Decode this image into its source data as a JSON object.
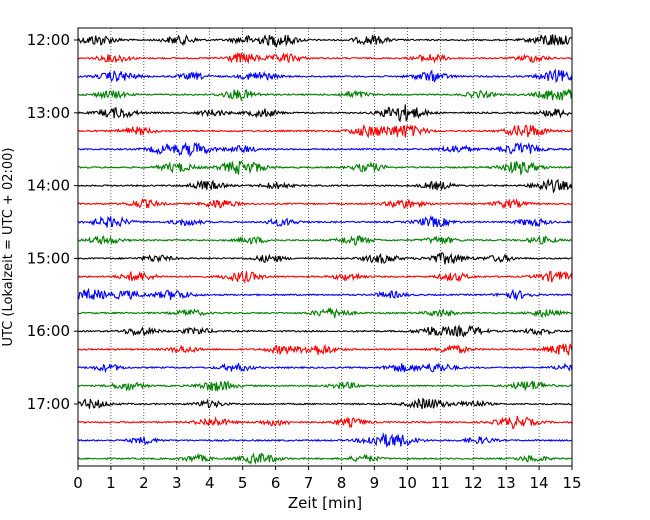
{
  "chart_data": {
    "type": "line",
    "title": "",
    "xlabel": "Zeit  [min]",
    "ylabel": "UTC (Lokalzeit = UTC + 02:00)",
    "xlim": [
      0,
      15
    ],
    "x_ticks": [
      "0",
      "1",
      "2",
      "3",
      "4",
      "5",
      "6",
      "7",
      "8",
      "9",
      "10",
      "11",
      "12",
      "13",
      "14",
      "15"
    ],
    "y_ticks": [
      "12:00",
      "13:00",
      "14:00",
      "15:00",
      "16:00",
      "17:00"
    ],
    "grid": {
      "vertical": true,
      "style": "dotted"
    },
    "trace_colors": [
      "#000000",
      "#ff0000",
      "#0000ff",
      "#008000"
    ],
    "traces": [
      {
        "start": "12:00",
        "bursts": [
          [
            0.6,
            1.6
          ],
          [
            3.1,
            1.3
          ],
          [
            5.1,
            1.1
          ],
          [
            6.1,
            1.8
          ],
          [
            8.9,
            1.4
          ],
          [
            14.4,
            2.0
          ]
        ]
      },
      {
        "start": "12:15",
        "bursts": [
          [
            1.1,
            1.2
          ],
          [
            5.0,
            1.5
          ],
          [
            6.3,
            1.3
          ],
          [
            10.7,
            1.2
          ],
          [
            13.8,
            1.1
          ]
        ]
      },
      {
        "start": "12:30",
        "bursts": [
          [
            1.2,
            1.6
          ],
          [
            3.5,
            1.0
          ],
          [
            5.5,
            1.4
          ],
          [
            10.7,
            1.5
          ],
          [
            14.6,
            1.8
          ]
        ]
      },
      {
        "start": "12:45",
        "bursts": [
          [
            1.0,
            1.2
          ],
          [
            4.9,
            1.5
          ],
          [
            8.4,
            1.0
          ],
          [
            12.2,
            1.0
          ],
          [
            14.6,
            2.0
          ]
        ]
      },
      {
        "start": "13:00",
        "bursts": [
          [
            1.2,
            1.6
          ],
          [
            4.1,
            1.0
          ],
          [
            5.6,
            1.2
          ],
          [
            9.6,
            1.2
          ],
          [
            10.0,
            1.8
          ],
          [
            14.5,
            1.2
          ]
        ]
      },
      {
        "start": "13:15",
        "bursts": [
          [
            1.8,
            1.2
          ],
          [
            8.8,
            1.6
          ],
          [
            9.9,
            2.0
          ],
          [
            13.4,
            1.2
          ],
          [
            13.8,
            1.3
          ]
        ]
      },
      {
        "start": "13:30",
        "bursts": [
          [
            2.6,
            1.3
          ],
          [
            3.5,
            1.8
          ],
          [
            5.0,
            1.0
          ],
          [
            11.5,
            1.2
          ],
          [
            13.4,
            1.8
          ]
        ]
      },
      {
        "start": "13:45",
        "bursts": [
          [
            3.0,
            1.4
          ],
          [
            4.7,
            1.2
          ],
          [
            5.2,
            1.5
          ],
          [
            8.8,
            1.3
          ],
          [
            13.4,
            1.9
          ]
        ]
      },
      {
        "start": "14:00",
        "bursts": [
          [
            3.9,
            1.4
          ],
          [
            6.0,
            1.0
          ],
          [
            10.9,
            1.2
          ],
          [
            14.4,
            1.8
          ]
        ]
      },
      {
        "start": "14:15",
        "bursts": [
          [
            2.0,
            1.2
          ],
          [
            4.3,
            1.3
          ],
          [
            9.9,
            1.4
          ],
          [
            13.1,
            1.2
          ]
        ]
      },
      {
        "start": "14:30",
        "bursts": [
          [
            1.0,
            1.6
          ],
          [
            3.3,
            1.0
          ],
          [
            6.2,
            1.1
          ],
          [
            10.8,
            1.5
          ],
          [
            13.8,
            1.2
          ]
        ]
      },
      {
        "start": "14:45",
        "bursts": [
          [
            0.8,
            1.2
          ],
          [
            5.3,
            1.0
          ],
          [
            8.4,
            1.3
          ],
          [
            11.0,
            1.1
          ],
          [
            14.1,
            1.0
          ]
        ]
      },
      {
        "start": "15:00",
        "bursts": [
          [
            2.4,
            1.0
          ],
          [
            5.8,
            1.1
          ],
          [
            9.2,
            1.4
          ],
          [
            11.2,
            1.7
          ],
          [
            12.8,
            1.0
          ]
        ]
      },
      {
        "start": "15:15",
        "bursts": [
          [
            1.8,
            1.4
          ],
          [
            5.0,
            1.6
          ],
          [
            8.2,
            1.0
          ],
          [
            11.4,
            1.2
          ],
          [
            14.5,
            1.6
          ]
        ]
      },
      {
        "start": "15:30",
        "bursts": [
          [
            0.4,
            1.6
          ],
          [
            1.5,
            1.2
          ],
          [
            2.9,
            1.5
          ],
          [
            9.5,
            1.0
          ],
          [
            13.3,
            1.2
          ]
        ]
      },
      {
        "start": "15:45",
        "bursts": [
          [
            3.4,
            1.0
          ],
          [
            7.7,
            1.5
          ],
          [
            11.0,
            1.0
          ],
          [
            14.2,
            1.1
          ]
        ]
      },
      {
        "start": "16:00",
        "bursts": [
          [
            1.9,
            1.3
          ],
          [
            3.6,
            1.0
          ],
          [
            10.8,
            1.4
          ],
          [
            11.8,
            1.6
          ],
          [
            14.0,
            1.0
          ]
        ]
      },
      {
        "start": "16:15",
        "bursts": [
          [
            3.2,
            1.0
          ],
          [
            6.2,
            1.2
          ],
          [
            7.3,
            1.6
          ],
          [
            11.4,
            1.2
          ],
          [
            14.8,
            1.8
          ]
        ]
      },
      {
        "start": "16:30",
        "bursts": [
          [
            0.9,
            1.0
          ],
          [
            4.8,
            1.2
          ],
          [
            9.8,
            1.2
          ],
          [
            10.9,
            1.4
          ],
          [
            14.9,
            1.0
          ]
        ]
      },
      {
        "start": "16:45",
        "bursts": [
          [
            1.5,
            1.2
          ],
          [
            4.2,
            1.6
          ],
          [
            8.1,
            1.0
          ],
          [
            13.7,
            1.5
          ]
        ]
      },
      {
        "start": "17:00",
        "bursts": [
          [
            0.4,
            1.4
          ],
          [
            4.0,
            1.0
          ],
          [
            10.6,
            1.7
          ],
          [
            12.0,
            1.0
          ]
        ]
      },
      {
        "start": "17:15",
        "bursts": [
          [
            4.1,
            1.3
          ],
          [
            6.0,
            1.0
          ],
          [
            8.3,
            1.2
          ],
          [
            13.3,
            1.8
          ]
        ]
      },
      {
        "start": "17:30",
        "bursts": [
          [
            2.0,
            1.0
          ],
          [
            9.0,
            1.2
          ],
          [
            9.7,
            1.8
          ],
          [
            12.2,
            1.0
          ]
        ]
      },
      {
        "start": "17:45",
        "bursts": [
          [
            3.6,
            1.0
          ],
          [
            5.5,
            1.6
          ],
          [
            8.7,
            1.0
          ],
          [
            13.8,
            1.0
          ]
        ]
      }
    ]
  }
}
